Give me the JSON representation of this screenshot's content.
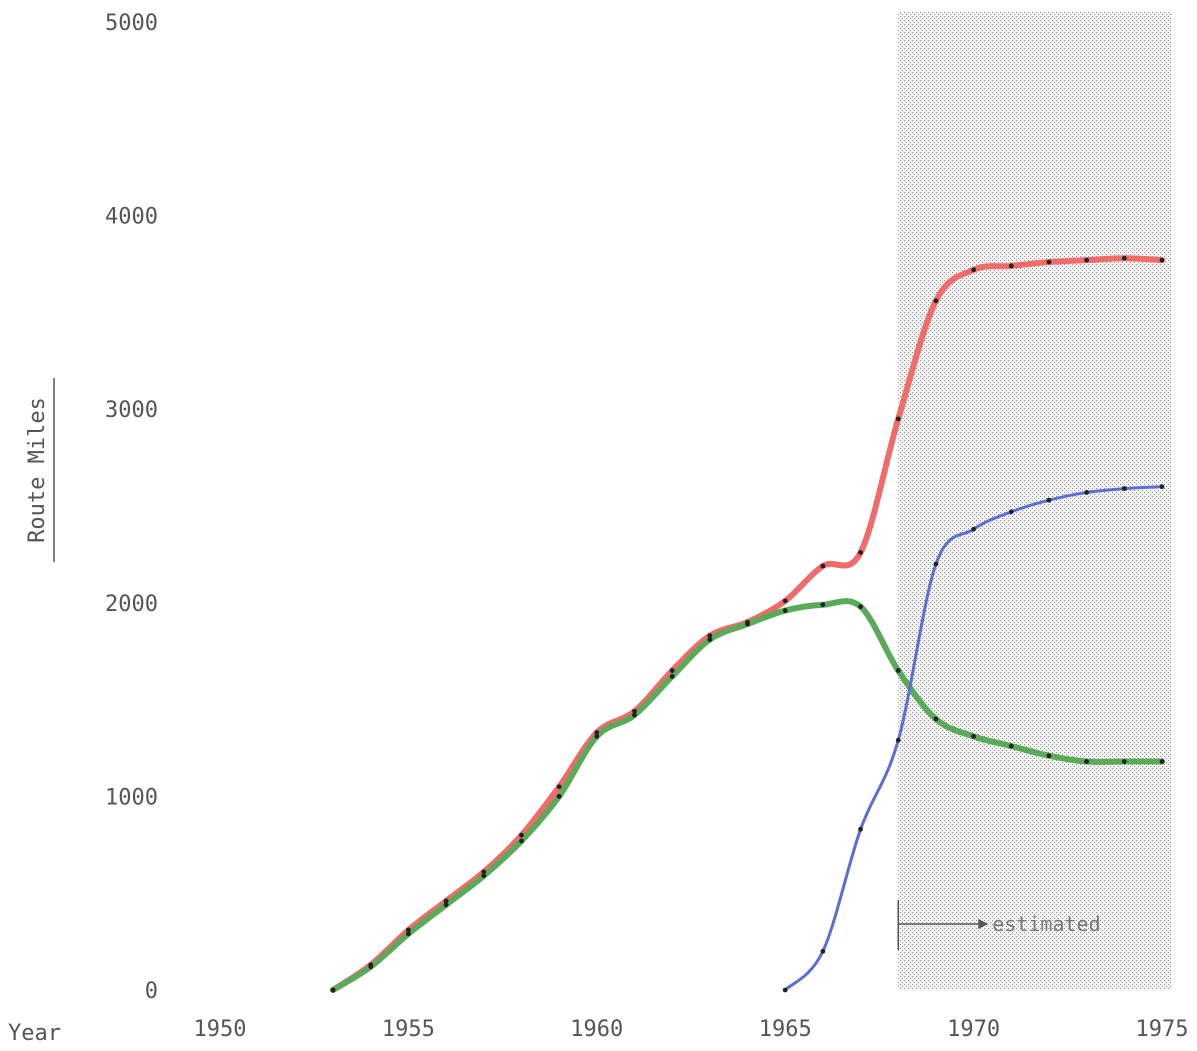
{
  "chart_data": {
    "type": "line",
    "xlabel": "Year",
    "ylabel": "Route Miles",
    "xlim": [
      1950,
      1975
    ],
    "ylim": [
      0,
      5000
    ],
    "x_ticks": [
      1950,
      1955,
      1960,
      1965,
      1970,
      1975
    ],
    "y_ticks": [
      0,
      1000,
      2000,
      3000,
      4000,
      5000
    ],
    "grid": false,
    "estimated_region": {
      "from": 1968,
      "to": 1975,
      "label": "estimated"
    },
    "series": [
      {
        "color": "#f26b6b",
        "width": 6,
        "x": [
          1953,
          1954,
          1955,
          1956,
          1957,
          1958,
          1959,
          1960,
          1961,
          1962,
          1963,
          1964,
          1965,
          1966,
          1967,
          1968,
          1969,
          1970,
          1971,
          1972,
          1973,
          1974,
          1975
        ],
        "values": [
          0,
          130,
          310,
          460,
          610,
          800,
          1050,
          1330,
          1440,
          1650,
          1830,
          1900,
          2010,
          2190,
          2260,
          2950,
          3560,
          3720,
          3740,
          3760,
          3770,
          3780,
          3770
        ]
      },
      {
        "color": "#5aaa5a",
        "width": 6,
        "x": [
          1953,
          1954,
          1955,
          1956,
          1957,
          1958,
          1959,
          1960,
          1961,
          1962,
          1963,
          1964,
          1965,
          1966,
          1967,
          1968,
          1969,
          1970,
          1971,
          1972,
          1973,
          1974,
          1975
        ],
        "values": [
          0,
          120,
          290,
          440,
          590,
          770,
          1000,
          1310,
          1420,
          1620,
          1810,
          1890,
          1960,
          1990,
          1980,
          1650,
          1400,
          1310,
          1260,
          1210,
          1180,
          1180,
          1180
        ]
      },
      {
        "color": "#5a6ed6",
        "width": 3,
        "x": [
          1965,
          1966,
          1967,
          1968,
          1969,
          1970,
          1971,
          1972,
          1973,
          1974,
          1975
        ],
        "values": [
          0,
          200,
          830,
          1290,
          2200,
          2380,
          2470,
          2530,
          2570,
          2590,
          2600
        ]
      }
    ]
  }
}
